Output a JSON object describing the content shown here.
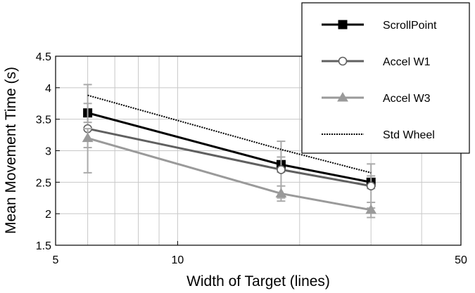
{
  "chart_data": {
    "type": "line",
    "title": "",
    "xlabel": "Width of Target (lines)",
    "ylabel": "Mean Movement Time (s)",
    "xscale": "log",
    "xlim": [
      5,
      50
    ],
    "ylim": [
      1.5,
      4.5
    ],
    "x_ticks": [
      "5",
      "10",
      "50"
    ],
    "y_ticks": [
      "1.5",
      "2",
      "2.5",
      "3",
      "3.5",
      "4",
      "4.5"
    ],
    "grid": true,
    "legend_position": "top-right",
    "x": [
      6,
      18,
      30
    ],
    "series": [
      {
        "name": "ScrollPoint",
        "values": [
          3.6,
          2.78,
          2.5
        ],
        "error": [
          0.15,
          0.12,
          0.1
        ],
        "color": "#000000",
        "marker": "square-filled",
        "line": "solid"
      },
      {
        "name": "Accel W1",
        "values": [
          3.35,
          2.7,
          2.44
        ],
        "error": [
          0.7,
          0.45,
          0.35
        ],
        "color": "#606060",
        "marker": "circle-open",
        "line": "solid"
      },
      {
        "name": "Accel W3",
        "values": [
          3.2,
          2.32,
          2.06
        ],
        "error": [
          0.15,
          0.12,
          0.12
        ],
        "color": "#9a9a9a",
        "marker": "triangle-filled",
        "line": "solid"
      },
      {
        "name": "Std Wheel",
        "values": [
          3.88,
          3.02,
          2.65
        ],
        "error": null,
        "color": "#000000",
        "marker": "none",
        "line": "dotted"
      }
    ]
  }
}
